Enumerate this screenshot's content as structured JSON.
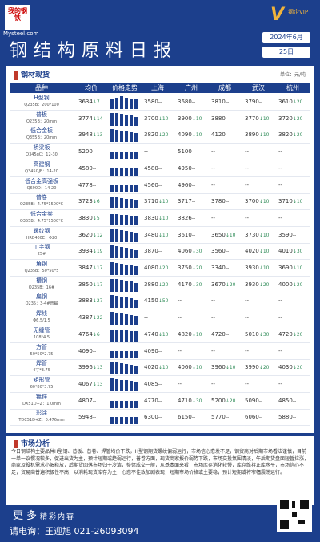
{
  "header": {
    "logo_cn": "我的钢铁",
    "logo_url": "Mysteel.com",
    "vip_letter": "V",
    "vip_text": "钢企VIP",
    "title": "钢结构原料日报",
    "month": "2024年6月",
    "day": "25日"
  },
  "section": {
    "label": "钢材现货",
    "unit": "单位：元/吨"
  },
  "table": {
    "headers": [
      "品种",
      "均价",
      "价格走势",
      "上海",
      "广州",
      "成都",
      "武汉",
      "杭州"
    ],
    "rows": [
      {
        "name": "H型钢",
        "spec": "Q235B：200*100",
        "avg": "3634",
        "avg_chg": "↓7",
        "avg_dir": "dn",
        "sh": "3580",
        "sh_chg": "--",
        "gz": "3680",
        "gz_chg": "--",
        "cd": "3810",
        "cd_chg": "--",
        "wh": "3790",
        "wh_chg": "--",
        "hz": "3610",
        "hz_chg": "↓20",
        "spark": [
          0.7,
          0.8,
          0.9,
          0.8,
          0.75,
          0.7
        ]
      },
      {
        "name": "普板",
        "spec": "Q235B：20mm",
        "avg": "3774",
        "avg_chg": "↓14",
        "avg_dir": "dn",
        "sh": "3700",
        "sh_chg": "↓10",
        "gz": "3900",
        "gz_chg": "↓10",
        "cd": "3880",
        "cd_chg": "--",
        "wh": "3770",
        "wh_chg": "↓10",
        "hz": "3720",
        "hz_chg": "↓20",
        "spark": [
          0.9,
          0.85,
          0.8,
          0.75,
          0.7,
          0.6
        ]
      },
      {
        "name": "低合金板",
        "spec": "Q355B：20mm",
        "avg": "3948",
        "avg_chg": "↓13",
        "avg_dir": "dn",
        "sh": "3820",
        "sh_chg": "↓20",
        "gz": "4090",
        "gz_chg": "↓10",
        "cd": "4120",
        "cd_chg": "--",
        "wh": "3890",
        "wh_chg": "↓10",
        "hz": "3820",
        "hz_chg": "↓20",
        "spark": [
          0.9,
          0.85,
          0.8,
          0.75,
          0.7,
          0.65
        ]
      },
      {
        "name": "桥梁板",
        "spec": "Q345qC：12-30",
        "avg": "5200",
        "avg_chg": "--",
        "avg_dir": "",
        "sh": "--",
        "sh_chg": "",
        "gz": "5100",
        "gz_chg": "--",
        "cd": "--",
        "cd_chg": "",
        "wh": "--",
        "wh_chg": "",
        "hz": "--",
        "hz_chg": "",
        "spark": [
          0.5,
          0.5,
          0.5,
          0.5,
          0.5,
          0.5
        ]
      },
      {
        "name": "高建钢",
        "spec": "Q345GJB：14-20",
        "avg": "4580",
        "avg_chg": "--",
        "avg_dir": "",
        "sh": "4580",
        "sh_chg": "--",
        "gz": "4950",
        "gz_chg": "--",
        "cd": "--",
        "cd_chg": "",
        "wh": "--",
        "wh_chg": "",
        "hz": "--",
        "hz_chg": "",
        "spark": [
          0.5,
          0.5,
          0.5,
          0.5,
          0.5,
          0.5
        ]
      },
      {
        "name": "低合金高强板",
        "spec": "Q690D：14-20",
        "avg": "4778",
        "avg_chg": "--",
        "avg_dir": "",
        "sh": "4560",
        "sh_chg": "--",
        "gz": "4960",
        "gz_chg": "--",
        "cd": "--",
        "cd_chg": "",
        "wh": "--",
        "wh_chg": "",
        "hz": "--",
        "hz_chg": "",
        "spark": [
          0.5,
          0.5,
          0.5,
          0.5,
          0.5,
          0.5
        ]
      },
      {
        "name": "普卷",
        "spec": "Q235B：4.75*1500*C",
        "avg": "3723",
        "avg_chg": "↓6",
        "avg_dir": "dn",
        "sh": "3710",
        "sh_chg": "↓10",
        "gz": "3717",
        "gz_chg": "--",
        "cd": "3780",
        "cd_chg": "--",
        "wh": "3700",
        "wh_chg": "↓10",
        "hz": "3710",
        "hz_chg": "↓10",
        "spark": [
          0.8,
          0.8,
          0.75,
          0.7,
          0.7,
          0.65
        ]
      },
      {
        "name": "低合金卷",
        "spec": "Q355B：4.75*1500*C",
        "avg": "3830",
        "avg_chg": "↓5",
        "avg_dir": "dn",
        "sh": "3830",
        "sh_chg": "↓10",
        "gz": "3826",
        "gz_chg": "--",
        "cd": "--",
        "cd_chg": "",
        "wh": "--",
        "wh_chg": "",
        "hz": "--",
        "hz_chg": "",
        "spark": [
          0.8,
          0.75,
          0.7,
          0.7,
          0.65,
          0.6
        ]
      },
      {
        "name": "螺纹钢",
        "spec": "HRB400E：Φ20",
        "avg": "3620",
        "avg_chg": "↓12",
        "avg_dir": "dn",
        "sh": "3480",
        "sh_chg": "↓10",
        "gz": "3610",
        "gz_chg": "--",
        "cd": "3650",
        "cd_chg": "↓10",
        "wh": "3730",
        "wh_chg": "↓10",
        "hz": "3590",
        "hz_chg": "--",
        "spark": [
          0.9,
          0.85,
          0.8,
          0.75,
          0.7,
          0.6
        ]
      },
      {
        "name": "工字钢",
        "spec": "25#",
        "avg": "3934",
        "avg_chg": "↓19",
        "avg_dir": "dn",
        "sh": "3870",
        "sh_chg": "--",
        "gz": "4060",
        "gz_chg": "↓30",
        "cd": "3560",
        "cd_chg": "--",
        "wh": "4020",
        "wh_chg": "↓10",
        "hz": "4010",
        "hz_chg": "↓30",
        "spark": [
          0.9,
          0.85,
          0.8,
          0.75,
          0.7,
          0.6
        ]
      },
      {
        "name": "角钢",
        "spec": "Q235B：50*50*5",
        "avg": "3847",
        "avg_chg": "↓17",
        "avg_dir": "dn",
        "sh": "4080",
        "sh_chg": "↓20",
        "gz": "3750",
        "gz_chg": "↓20",
        "cd": "3340",
        "cd_chg": "--",
        "wh": "3930",
        "wh_chg": "↓10",
        "hz": "3690",
        "hz_chg": "↓10",
        "spark": [
          0.9,
          0.85,
          0.8,
          0.75,
          0.7,
          0.6
        ]
      },
      {
        "name": "槽钢",
        "spec": "Q235B：16#",
        "avg": "3850",
        "avg_chg": "↓17",
        "avg_dir": "dn",
        "sh": "3880",
        "sh_chg": "↓20",
        "gz": "4170",
        "gz_chg": "↓30",
        "cd": "3670",
        "cd_chg": "↓20",
        "wh": "3930",
        "wh_chg": "↓20",
        "hz": "4000",
        "hz_chg": "↓20",
        "spark": [
          0.9,
          0.85,
          0.8,
          0.75,
          0.7,
          0.6
        ]
      },
      {
        "name": "扁钢",
        "spec": "Q235：3-4#普扁",
        "avg": "3883",
        "avg_chg": "↓27",
        "avg_dir": "dn",
        "sh": "4150",
        "sh_chg": "↓50",
        "gz": "--",
        "gz_chg": "",
        "cd": "--",
        "cd_chg": "",
        "wh": "--",
        "wh_chg": "",
        "hz": "--",
        "hz_chg": "",
        "spark": [
          0.9,
          0.85,
          0.8,
          0.75,
          0.7,
          0.6
        ]
      },
      {
        "name": "焊线",
        "spec": "Φ6.5/1.5",
        "avg": "4387",
        "avg_chg": "↓22",
        "avg_dir": "dn",
        "sh": "--",
        "sh_chg": "",
        "gz": "--",
        "gz_chg": "",
        "cd": "--",
        "cd_chg": "",
        "wh": "--",
        "wh_chg": "",
        "hz": "--",
        "hz_chg": "",
        "spark": [
          0.9,
          0.85,
          0.8,
          0.75,
          0.7,
          0.6
        ]
      },
      {
        "name": "无缝管",
        "spec": "108*4.5",
        "avg": "4764",
        "avg_chg": "↓6",
        "avg_dir": "dn",
        "sh": "4740",
        "sh_chg": "↓10",
        "gz": "4820",
        "gz_chg": "↓10",
        "cd": "4720",
        "cd_chg": "--",
        "wh": "5010",
        "wh_chg": "↓30",
        "hz": "4720",
        "hz_chg": "↓20",
        "spark": [
          0.8,
          0.8,
          0.75,
          0.75,
          0.7,
          0.7
        ]
      },
      {
        "name": "方管",
        "spec": "50*50*2.75",
        "avg": "4090",
        "avg_chg": "--",
        "avg_dir": "",
        "sh": "4090",
        "sh_chg": "--",
        "gz": "--",
        "gz_chg": "",
        "cd": "--",
        "cd_chg": "",
        "wh": "--",
        "wh_chg": "",
        "hz": "--",
        "hz_chg": "",
        "spark": [
          0.5,
          0.5,
          0.5,
          0.5,
          0.5,
          0.5
        ]
      },
      {
        "name": "焊管",
        "spec": "4寸*3.75",
        "avg": "3996",
        "avg_chg": "↓13",
        "avg_dir": "dn",
        "sh": "4020",
        "sh_chg": "↓10",
        "gz": "4060",
        "gz_chg": "↓10",
        "cd": "3960",
        "cd_chg": "↓10",
        "wh": "3990",
        "wh_chg": "↓20",
        "hz": "4030",
        "hz_chg": "↓20",
        "spark": [
          0.9,
          0.85,
          0.8,
          0.75,
          0.7,
          0.65
        ]
      },
      {
        "name": "矩形管",
        "spec": "60*80*3.75",
        "avg": "4067",
        "avg_chg": "↓13",
        "avg_dir": "dn",
        "sh": "4085",
        "sh_chg": "--",
        "gz": "--",
        "gz_chg": "",
        "cd": "--",
        "cd_chg": "",
        "wh": "--",
        "wh_chg": "",
        "hz": "--",
        "hz_chg": "",
        "spark": [
          0.9,
          0.85,
          0.8,
          0.75,
          0.7,
          0.65
        ]
      },
      {
        "name": "镀锌",
        "spec": "DX51D+Z：1.0mm",
        "avg": "4807",
        "avg_chg": "--",
        "avg_dir": "",
        "sh": "4770",
        "sh_chg": "--",
        "gz": "4710",
        "gz_chg": "↓30",
        "cd": "5200",
        "cd_chg": "↓20",
        "wh": "5090",
        "wh_chg": "--",
        "hz": "4850",
        "hz_chg": "--",
        "spark": [
          0.5,
          0.5,
          0.5,
          0.5,
          0.5,
          0.5
        ]
      },
      {
        "name": "彩涂",
        "spec": "TDC51D+Z：0.476mm",
        "avg": "5948",
        "avg_chg": "--",
        "avg_dir": "",
        "sh": "6300",
        "sh_chg": "--",
        "gz": "6150",
        "gz_chg": "--",
        "cd": "5770",
        "cd_chg": "--",
        "wh": "6060",
        "wh_chg": "--",
        "hz": "5880",
        "hz_chg": "--",
        "spark": [
          0.5,
          0.5,
          0.5,
          0.5,
          0.5,
          0.5
        ]
      }
    ]
  },
  "analysis": {
    "label": "市场分析",
    "text": "今日钢结构主要品种H型钢、普板、普卷、焊管均价下跌，H型钢期货螺纹偏弱运行，市场信心愈发不足，钢贸商对后期市场看法谨慎，目前一单一议惯况较多，促进出货为主，预计短期或趋弱运行，普卷方面，现货商家报价弱势下跌，市场交投氛围清淡，午后期货盘面短暂拉涨，商家及投机需求小幅释放，后期货回落市场归于冷清，整体成交一般，从基本面来看，市场库存消化较慢，库存维持正库水平，市场信心不足，贸易商普遍积极性不高，以消耗现货库存为主，心态不佳致加剧表现，短期市场价格或主要稳，预计短期或将窄幅震荡运行。"
  },
  "footer": {
    "more": "更多",
    "more_sub": "精彩内容",
    "contact": "请电询：王迎旭   021-26093094"
  }
}
